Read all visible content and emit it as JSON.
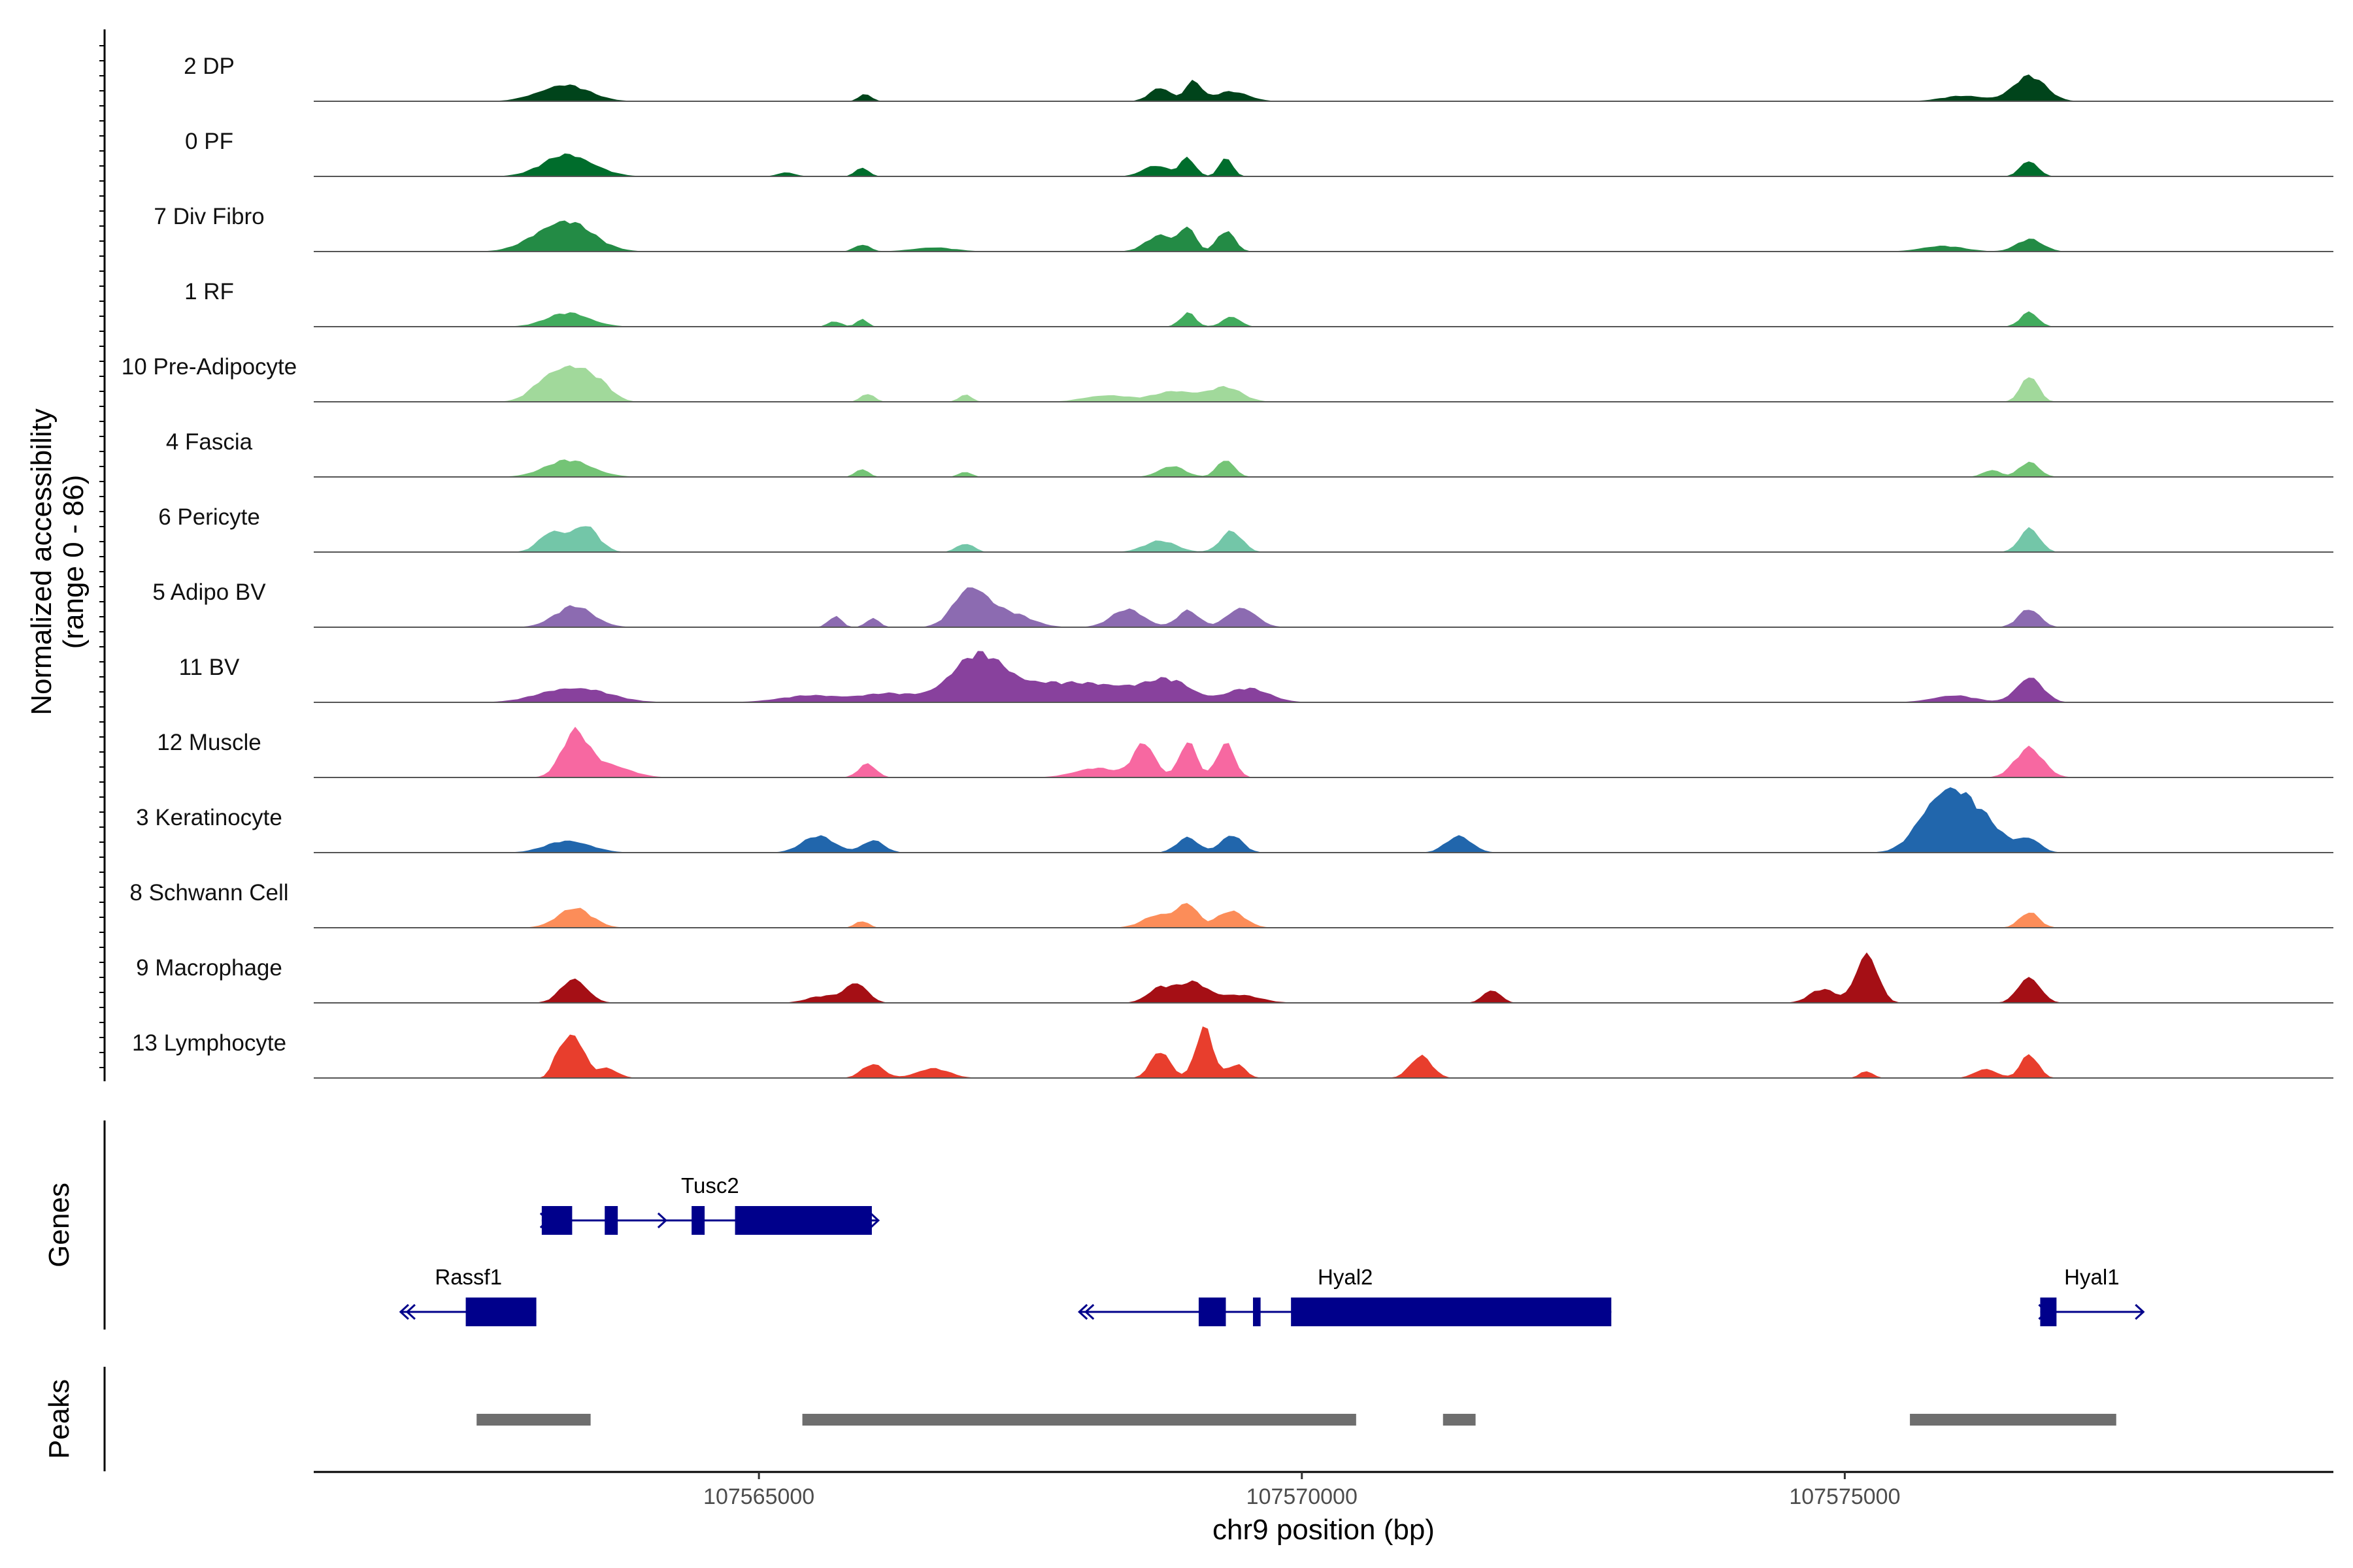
{
  "chart_data": {
    "type": "area",
    "title": "",
    "ylabel_line1": "Normalized accessibility",
    "ylabel_line2": "(range 0 - 86)",
    "y_range": [
      0,
      86
    ],
    "xlabel": "chr9 position (bp)",
    "xlim": [
      107560900,
      107579500
    ],
    "x_ticks": [
      107565000,
      107570000,
      107575000
    ],
    "x_tick_labels": [
      "107565000",
      "107570000",
      "107575000"
    ],
    "genes_label": "Genes",
    "peaks_label": "Peaks",
    "tracks": [
      {
        "label": "2 DP",
        "color": "#00441b",
        "peaks": [
          [
            107563200,
            24,
            230
          ],
          [
            107565980,
            10,
            60
          ],
          [
            107568700,
            20,
            100
          ],
          [
            107569000,
            30,
            70
          ],
          [
            107569350,
            14,
            160
          ],
          [
            107576700,
            36,
            150
          ],
          [
            107576100,
            8,
            200
          ]
        ]
      },
      {
        "label": "0 PF",
        "color": "#006d2c",
        "peaks": [
          [
            107563250,
            32,
            230
          ],
          [
            107565950,
            14,
            60
          ],
          [
            107565250,
            6,
            80
          ],
          [
            107568650,
            16,
            120
          ],
          [
            107568950,
            26,
            70
          ],
          [
            107569300,
            30,
            60
          ],
          [
            107576700,
            24,
            80
          ]
        ]
      },
      {
        "label": "7 Div Fibro",
        "color": "#238b45",
        "peaks": [
          [
            107563200,
            46,
            250
          ],
          [
            107565950,
            10,
            70
          ],
          [
            107566600,
            6,
            200
          ],
          [
            107568700,
            24,
            130
          ],
          [
            107568950,
            36,
            70
          ],
          [
            107569300,
            30,
            80
          ],
          [
            107575900,
            8,
            200
          ],
          [
            107576700,
            18,
            120
          ]
        ]
      },
      {
        "label": "1 RF",
        "color": "#41ab5d",
        "peaks": [
          [
            107563250,
            20,
            200
          ],
          [
            107565700,
            8,
            60
          ],
          [
            107565950,
            12,
            50
          ],
          [
            107568950,
            20,
            70
          ],
          [
            107569350,
            16,
            80
          ],
          [
            107576700,
            22,
            80
          ]
        ]
      },
      {
        "label": "10 Pre-Adipocyte",
        "color": "#a1d99b",
        "peaks": [
          [
            107563050,
            28,
            150
          ],
          [
            107563300,
            44,
            160
          ],
          [
            107563550,
            18,
            120
          ],
          [
            107566000,
            12,
            60
          ],
          [
            107566900,
            10,
            60
          ],
          [
            107568200,
            10,
            200
          ],
          [
            107568850,
            16,
            200
          ],
          [
            107569300,
            20,
            150
          ],
          [
            107576700,
            38,
            80
          ]
        ]
      },
      {
        "label": "4 Fascia",
        "color": "#74c476",
        "peaks": [
          [
            107563250,
            24,
            220
          ],
          [
            107565950,
            12,
            60
          ],
          [
            107566900,
            8,
            60
          ],
          [
            107568800,
            16,
            120
          ],
          [
            107569300,
            26,
            80
          ],
          [
            107576350,
            10,
            80
          ],
          [
            107576700,
            22,
            90
          ]
        ]
      },
      {
        "label": "6 Pericyte",
        "color": "#73c6a8",
        "peaks": [
          [
            107563100,
            30,
            120
          ],
          [
            107563400,
            38,
            120
          ],
          [
            107566900,
            12,
            80
          ],
          [
            107568700,
            16,
            150
          ],
          [
            107569350,
            30,
            100
          ],
          [
            107576700,
            36,
            90
          ]
        ]
      },
      {
        "label": "5 Adipo BV",
        "color": "#8c6bb1",
        "peaks": [
          [
            107563300,
            30,
            180
          ],
          [
            107565700,
            16,
            60
          ],
          [
            107566050,
            14,
            60
          ],
          [
            107566950,
            58,
            150
          ],
          [
            107567300,
            20,
            200
          ],
          [
            107568400,
            26,
            150
          ],
          [
            107568950,
            24,
            100
          ],
          [
            107569450,
            30,
            130
          ],
          [
            107576700,
            26,
            100
          ]
        ]
      },
      {
        "label": "11 BV",
        "color": "#88419d",
        "peaks": [
          [
            107563300,
            22,
            300
          ],
          [
            107565500,
            10,
            300
          ],
          [
            107566200,
            12,
            250
          ],
          [
            107567000,
            60,
            250
          ],
          [
            107567600,
            26,
            400
          ],
          [
            107568300,
            20,
            300
          ],
          [
            107568800,
            28,
            200
          ],
          [
            107569500,
            20,
            200
          ],
          [
            107576000,
            10,
            200
          ],
          [
            107576700,
            38,
            120
          ]
        ]
      },
      {
        "label": "12 Muscle",
        "color": "#f768a1",
        "peaks": [
          [
            107563300,
            60,
            120
          ],
          [
            107563600,
            20,
            200
          ],
          [
            107566000,
            20,
            80
          ],
          [
            107568550,
            50,
            100
          ],
          [
            107568950,
            52,
            80
          ],
          [
            107569300,
            50,
            80
          ],
          [
            107568100,
            14,
            200
          ],
          [
            107576700,
            42,
            130
          ]
        ]
      },
      {
        "label": "3 Keratinocyte",
        "color": "#2166ac",
        "peaks": [
          [
            107563250,
            18,
            200
          ],
          [
            107565550,
            24,
            150
          ],
          [
            107566050,
            18,
            100
          ],
          [
            107568950,
            22,
            100
          ],
          [
            107569350,
            26,
            100
          ],
          [
            107571450,
            24,
            120
          ],
          [
            107575900,
            86,
            200
          ],
          [
            107576250,
            44,
            200
          ],
          [
            107576700,
            20,
            100
          ]
        ]
      },
      {
        "label": "8 Schwann Cell",
        "color": "#fc8d59",
        "peaks": [
          [
            107563300,
            28,
            160
          ],
          [
            107565950,
            10,
            60
          ],
          [
            107568700,
            20,
            150
          ],
          [
            107568950,
            32,
            90
          ],
          [
            107569350,
            24,
            130
          ],
          [
            107576700,
            22,
            90
          ]
        ]
      },
      {
        "label": "9 Macrophage",
        "color": "#a50f15",
        "peaks": [
          [
            107563300,
            36,
            120
          ],
          [
            107565900,
            30,
            100
          ],
          [
            107565600,
            10,
            150
          ],
          [
            107568700,
            22,
            120
          ],
          [
            107569000,
            28,
            130
          ],
          [
            107569400,
            12,
            200
          ],
          [
            107571750,
            20,
            80
          ],
          [
            107574800,
            20,
            120
          ],
          [
            107575200,
            74,
            100
          ],
          [
            107576700,
            40,
            100
          ]
        ]
      },
      {
        "label": "13 Lymphocyte",
        "color": "#e83e2d",
        "peaks": [
          [
            107563300,
            60,
            90
          ],
          [
            107563150,
            30,
            60
          ],
          [
            107563600,
            14,
            100
          ],
          [
            107566050,
            20,
            100
          ],
          [
            107566600,
            14,
            150
          ],
          [
            107568700,
            40,
            90
          ],
          [
            107569100,
            74,
            80
          ],
          [
            107569400,
            20,
            80
          ],
          [
            107571100,
            32,
            100
          ],
          [
            107575200,
            10,
            60
          ],
          [
            107576700,
            34,
            80
          ],
          [
            107576300,
            14,
            100
          ]
        ]
      }
    ],
    "genes": [
      {
        "name": "Tusc2",
        "strand": "+",
        "start": 107563000,
        "end": 107566100,
        "exons": [
          [
            107563000,
            107563280
          ],
          [
            107563580,
            107563700
          ],
          [
            107564380,
            107564500
          ],
          [
            107564780,
            107566040
          ]
        ]
      },
      {
        "name": "Rassf1",
        "strand": "-",
        "start": 107561700,
        "end": 107562950,
        "exons": [
          [
            107562300,
            107562950
          ]
        ]
      },
      {
        "name": "Hyal2",
        "strand": "-",
        "start": 107567950,
        "end": 107572850,
        "exons": [
          [
            107569050,
            107569300
          ],
          [
            107569550,
            107569620
          ],
          [
            107569900,
            107572850
          ]
        ]
      },
      {
        "name": "Hyal1",
        "strand": "+",
        "start": 107576800,
        "end": 107577750,
        "exons": [
          [
            107576800,
            107576950
          ]
        ]
      }
    ],
    "peak_regions": [
      [
        107562400,
        107563450
      ],
      [
        107565400,
        107570500
      ],
      [
        107571300,
        107571600
      ],
      [
        107575600,
        107577500
      ]
    ]
  }
}
